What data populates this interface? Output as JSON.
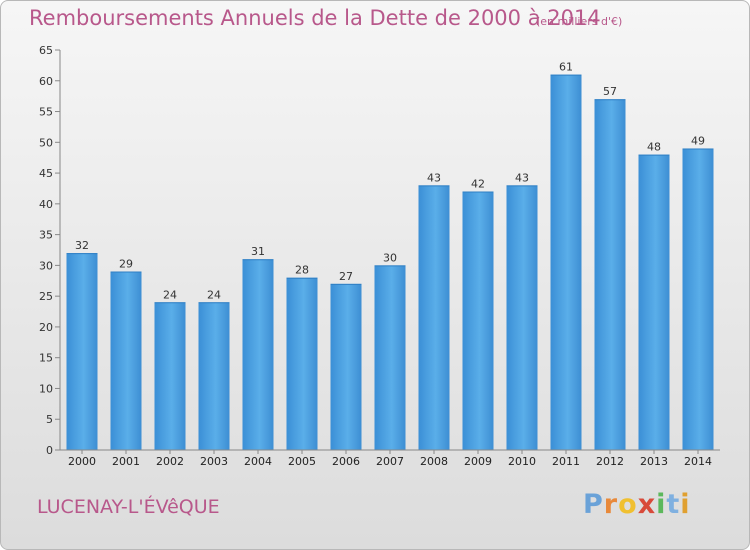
{
  "chart_data": {
    "type": "bar",
    "title": "Remboursements Annuels de la Dette de 2000 à 2014",
    "subtitle": "(en milliers d'€)",
    "categories": [
      "2000",
      "2001",
      "2002",
      "2003",
      "2004",
      "2005",
      "2006",
      "2007",
      "2008",
      "2009",
      "2010",
      "2011",
      "2012",
      "2013",
      "2014"
    ],
    "values": [
      32,
      29,
      24,
      24,
      31,
      28,
      27,
      30,
      43,
      42,
      43,
      61,
      57,
      48,
      49
    ],
    "ylim": [
      0,
      65
    ],
    "yticks": [
      0,
      5,
      10,
      15,
      20,
      25,
      30,
      35,
      40,
      45,
      50,
      55,
      60,
      65
    ],
    "grid": false,
    "bar_color": "#4a9fe0"
  },
  "place_name": "LUCENAY-L'ÉVêQUE",
  "logo": {
    "letters": [
      "P",
      "r",
      "o",
      "x",
      "i",
      "t",
      "i"
    ],
    "colors": [
      "#6aa2d8",
      "#e8893a",
      "#f0c030",
      "#d84a3a",
      "#5cb85c",
      "#7fb0e0",
      "#e0a030"
    ]
  }
}
